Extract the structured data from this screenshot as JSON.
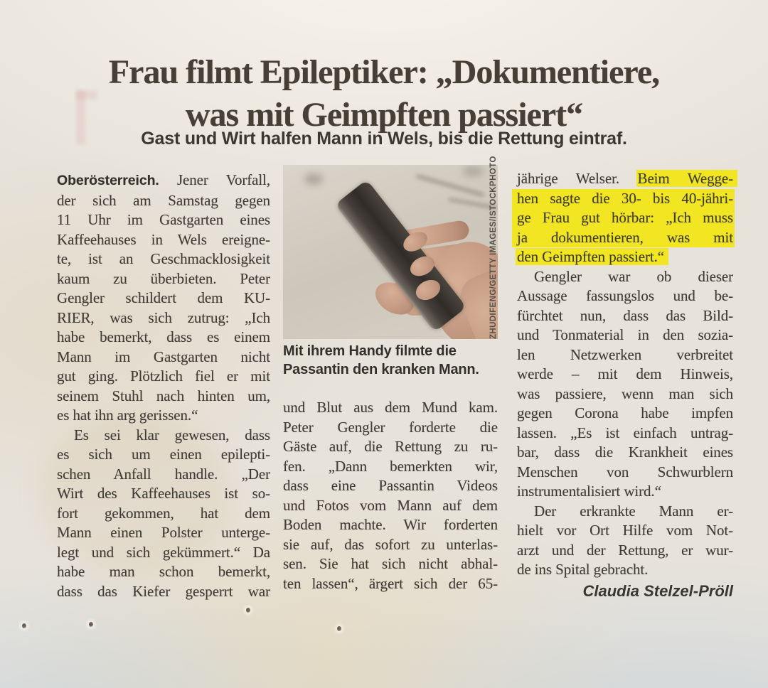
{
  "article": {
    "headline": [
      "Frau filmt Epileptiker: „Dokumentiere,",
      "was mit Geimpften passiert“"
    ],
    "subhead": "Gast und Wirt halfen Mann in Wels, bis die Rettung eintraf.",
    "byline": "Claudia Stelzel-Pröll"
  },
  "photo": {
    "caption": [
      "Mit ihrem Handy filmte die",
      "Passantin den kranken Mann."
    ],
    "credit": "ZHUDIFENG/GETTY IMAGES/ISTOCKPHOTO",
    "description": "Hand hält ein Smartphone"
  },
  "colors": {
    "highlight": "#f1e621",
    "paper": "#e7e3db",
    "ink": "#403c35"
  },
  "columns": [
    {
      "paragraphs": [
        {
          "lines": [
            {
              "seg": [
                {
                  "t": "Oberösterreich.",
                  "lead": true
                },
                {
                  "t": " Jener Vorfall,"
                }
              ]
            },
            {
              "t": "der sich am Samstag gegen"
            },
            {
              "t": "11 Uhr im Gastgarten eines"
            },
            {
              "t": "Kaffeehauses in Wels ereigne-"
            },
            {
              "t": "te, ist an Geschmacklosigkeit"
            },
            {
              "t": "kaum zu überbieten. Peter"
            },
            {
              "t": "Gengler schildert dem KU-"
            },
            {
              "t": "RIER, was sich zutrug: „Ich"
            },
            {
              "t": "habe bemerkt, dass es einem"
            },
            {
              "t": "Mann im Gastgarten nicht"
            },
            {
              "t": "gut ging. Plötzlich fiel er mit"
            },
            {
              "t": "seinem Stuhl nach hinten um,"
            },
            {
              "t": "es hat ihn arg gerissen.“",
              "last": true
            }
          ]
        },
        {
          "lines": [
            {
              "t": "Es sei klar gewesen, dass",
              "indent": true
            },
            {
              "t": "es sich um einen epilepti-"
            },
            {
              "t": "schen Anfall handle. „Der"
            },
            {
              "t": "Wirt des Kaffeehauses ist so-"
            },
            {
              "t": "fort gekommen, hat dem"
            },
            {
              "t": "Mann einen Polster unterge-"
            },
            {
              "t": "legt und sich gekümmert.“ Da"
            },
            {
              "t": "habe man schon bemerkt,"
            },
            {
              "t": "dass das Kiefer gesperrt war"
            }
          ]
        }
      ]
    },
    {
      "paragraphs": [
        {
          "lines": [
            {
              "t": "und Blut aus dem Mund kam."
            },
            {
              "t": "Peter Gengler forderte die"
            },
            {
              "t": "Gäste auf, die Rettung zu ru-"
            },
            {
              "t": "fen. „Dann bemerkten wir,"
            },
            {
              "t": "dass eine Passantin Videos"
            },
            {
              "t": "und Fotos vom Mann auf dem"
            },
            {
              "t": "Boden machte. Wir forderten"
            },
            {
              "t": "sie auf, das sofort zu unterlas-"
            },
            {
              "t": "sen. Sie hat sich nicht abhal-"
            },
            {
              "t": "ten lassen“, ärgert sich der 65-"
            }
          ]
        }
      ]
    },
    {
      "paragraphs": [
        {
          "lines": [
            {
              "seg": [
                {
                  "t": "jährige Welser. "
                },
                {
                  "t": "Beim Wegge-",
                  "mark": true
                }
              ]
            },
            {
              "t": "hen sagte die 30- bis 40-jähri-",
              "hl": true
            },
            {
              "t": "ge Frau gut hörbar: „Ich muss",
              "hl": true
            },
            {
              "t": "ja dokumentieren, was mit",
              "hl": true
            },
            {
              "seg": [
                {
                  "t": "den Geimpften passiert.“",
                  "mark": true
                }
              ],
              "last": true
            }
          ]
        },
        {
          "lines": [
            {
              "t": "Gengler war ob dieser",
              "indent": true
            },
            {
              "t": "Aussage fassungslos und be-"
            },
            {
              "t": "fürchtet nun, dass das Bild-"
            },
            {
              "t": "und Tonmaterial in den sozia-"
            },
            {
              "t": "len Netzwerken verbreitet"
            },
            {
              "t": "werde – mit dem Hinweis,"
            },
            {
              "t": "was passiere, wenn man sich"
            },
            {
              "t": "gegen Corona habe impfen"
            },
            {
              "t": "lassen. „Es ist einfach untrag-"
            },
            {
              "t": "bar, dass die Krankheit eines"
            },
            {
              "t": "Menschen von Schwurblern"
            },
            {
              "t": "instrumentalisiert wird.“",
              "last": true
            }
          ]
        },
        {
          "lines": [
            {
              "t": "Der erkrankte Mann er-",
              "indent": true
            },
            {
              "t": "hielt vor Ort Hilfe vom Not-"
            },
            {
              "t": "arzt und der Rettung, er wur-"
            },
            {
              "t": "de ins Spital gebracht.",
              "last": true
            }
          ]
        }
      ]
    }
  ]
}
